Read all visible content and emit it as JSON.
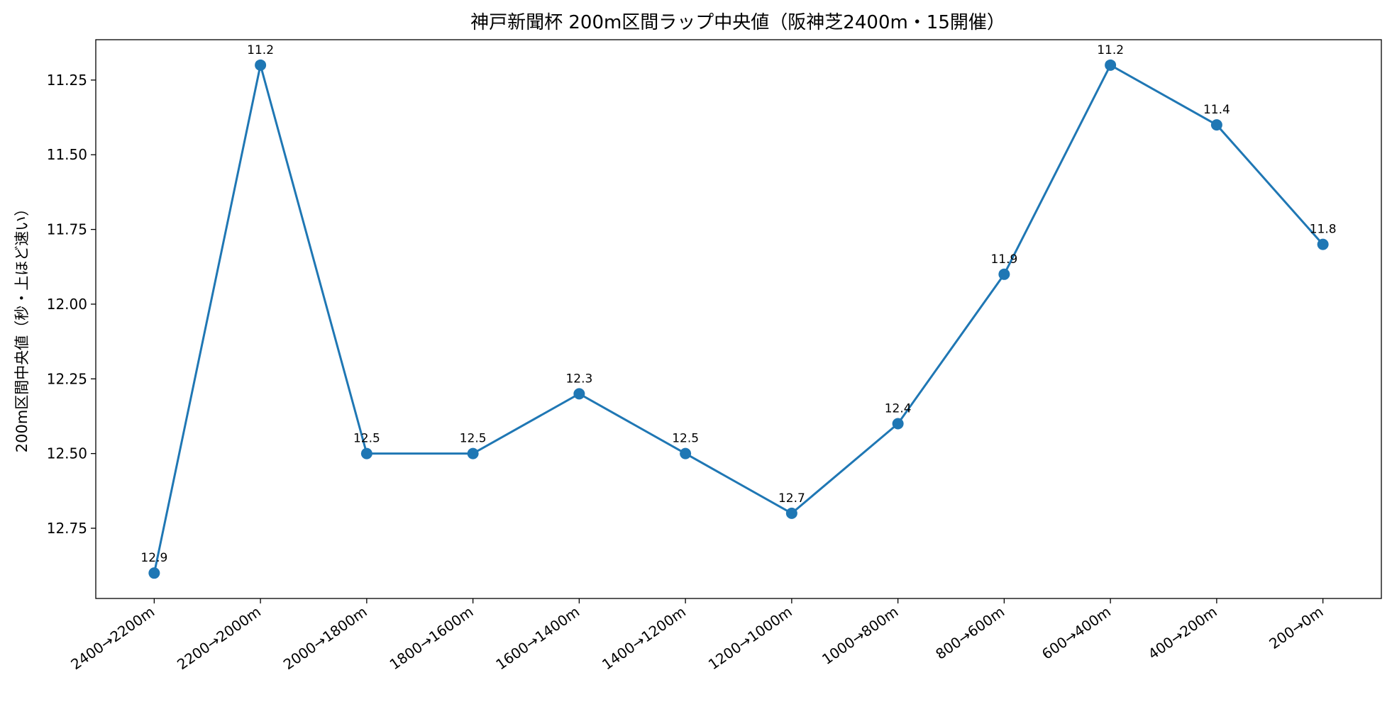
{
  "chart_data": {
    "type": "line",
    "title": "神戸新聞杯 200m区間ラップ中央値（阪神芝2400m・15開催）",
    "xlabel": "",
    "ylabel": "200m区間中央値（秒・上ほど速い）",
    "categories": [
      "2400→2200m",
      "2200→2000m",
      "2000→1800m",
      "1800→1600m",
      "1600→1400m",
      "1400→1200m",
      "1200→1000m",
      "1000→800m",
      "800→600m",
      "600→400m",
      "400→200m",
      "200→0m"
    ],
    "values": [
      12.9,
      11.2,
      12.5,
      12.5,
      12.3,
      12.5,
      12.7,
      12.4,
      11.9,
      11.2,
      11.4,
      11.8
    ],
    "data_labels": [
      "12.9",
      "11.2",
      "12.5",
      "12.5",
      "12.3",
      "12.5",
      "12.7",
      "12.4",
      "11.9",
      "11.2",
      "11.4",
      "11.8"
    ],
    "yticks": [
      11.25,
      11.5,
      11.75,
      12.0,
      12.25,
      12.5,
      12.75
    ],
    "ytick_labels": [
      "11.25",
      "11.50",
      "11.75",
      "12.00",
      "12.25",
      "12.50",
      "12.75"
    ],
    "ylim": [
      12.985,
      11.115
    ],
    "y_inverted": true,
    "grid": false,
    "legend": "none",
    "colors": {
      "line": "#1f77b4",
      "marker": "#1f77b4",
      "axis": "#000000"
    }
  }
}
